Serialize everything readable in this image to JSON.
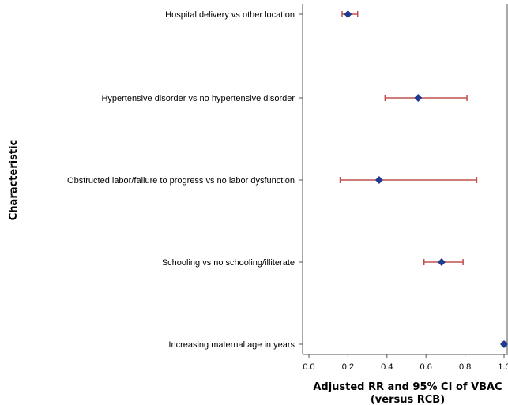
{
  "chart_data": {
    "type": "scatter",
    "title": "",
    "xlabel": [
      "Adjusted RR and 95% CI of VBAC",
      "(versus RCB)"
    ],
    "ylabel": "Characteristic",
    "xlim": [
      0.0,
      1.0
    ],
    "xticks": [
      "0.0",
      "0.2",
      "0.4",
      "0.6",
      "0.8",
      "1.0"
    ],
    "categories": [
      "Hospital delivery vs other location",
      "Hypertensive disorder vs no hypertensive disorder",
      "Obstructed labor/failure to progress vs no labor dysfunction",
      "Schooling vs no schooling/illiterate",
      "Increasing maternal age in years"
    ],
    "estimates": [
      0.2,
      0.56,
      0.36,
      0.68,
      1.0
    ],
    "ci_lower": [
      0.17,
      0.39,
      0.16,
      0.59,
      0.99
    ],
    "ci_upper": [
      0.25,
      0.81,
      0.86,
      0.79,
      1.01
    ],
    "grid": false,
    "colors": {
      "marker": "#1f3a93",
      "ci": "#c0504d",
      "axis": "#555555"
    }
  }
}
